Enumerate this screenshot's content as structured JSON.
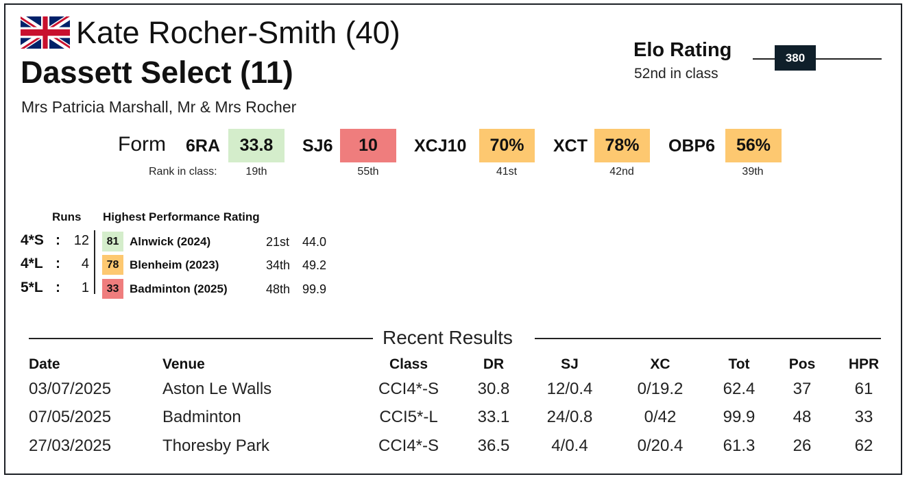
{
  "header": {
    "flag_icon": "uk-flag-icon",
    "rider": "Kate Rocher-Smith (40)",
    "horse": "Dassett Select (11)",
    "owners": "Mrs Patricia Marshall, Mr & Mrs Rocher"
  },
  "elo": {
    "title": "Elo Rating",
    "class_rank": "52nd in class",
    "value": "380"
  },
  "form": {
    "label": "Form",
    "rank_label": "Rank in class:",
    "items": [
      {
        "name": "6RA",
        "value": "33.8",
        "rank": "19th",
        "color": "#d4edcb"
      },
      {
        "name": "SJ6",
        "value": "10",
        "rank": "55th",
        "color": "#ef7d7d"
      },
      {
        "name": "XCJ10",
        "value": "70%",
        "rank": "41st",
        "color": "#fdc870"
      },
      {
        "name": "XCT",
        "value": "78%",
        "rank": "42nd",
        "color": "#fdc870"
      },
      {
        "name": "OBP6",
        "value": "56%",
        "rank": "39th",
        "color": "#fdc870"
      }
    ]
  },
  "runs": {
    "runs_header": "Runs",
    "hpr_header": "Highest Performance Rating",
    "rows": [
      {
        "level": "4*S",
        "colon": ":",
        "runs": "12",
        "hpr": "81",
        "event": "Alnwick  (2024)",
        "pos": "21st",
        "score": "44.0",
        "color": "#d4edcb"
      },
      {
        "level": "4*L",
        "colon": ":",
        "runs": "4",
        "hpr": "78",
        "event": "Blenheim  (2023)",
        "pos": "34th",
        "score": "49.2",
        "color": "#fdc870"
      },
      {
        "level": "5*L",
        "colon": ":",
        "runs": "1",
        "hpr": "33",
        "event": "Badminton  (2025)",
        "pos": "48th",
        "score": "99.9",
        "color": "#ef7d7d"
      }
    ]
  },
  "recent": {
    "title": "Recent Results",
    "columns": {
      "date": "Date",
      "venue": "Venue",
      "class": "Class",
      "dr": "DR",
      "sj": "SJ",
      "xc": "XC",
      "tot": "Tot",
      "pos": "Pos",
      "hpr": "HPR"
    },
    "rows": [
      {
        "date": "03/07/2025",
        "venue": "Aston Le Walls",
        "class": "CCI4*-S",
        "dr": "30.8",
        "sj": "12/0.4",
        "xc": "0/19.2",
        "tot": "62.4",
        "pos": "37",
        "hpr": "61"
      },
      {
        "date": "07/05/2025",
        "venue": "Badminton",
        "class": "CCI5*-L",
        "dr": "33.1",
        "sj": "24/0.8",
        "xc": "0/42",
        "tot": "99.9",
        "pos": "48",
        "hpr": "33"
      },
      {
        "date": "27/03/2025",
        "venue": "Thoresby Park",
        "class": "CCI4*-S",
        "dr": "36.5",
        "sj": "4/0.4",
        "xc": "0/20.4",
        "tot": "61.3",
        "pos": "26",
        "hpr": "62"
      }
    ]
  }
}
